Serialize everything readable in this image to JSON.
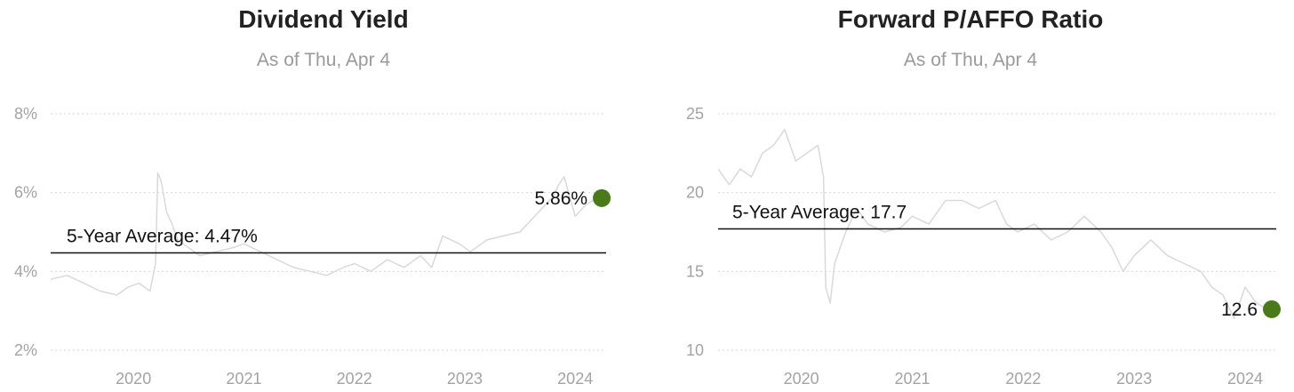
{
  "chart_data": [
    {
      "type": "line",
      "title": "Dividend Yield",
      "subtitle": "As of Thu, Apr 4",
      "yunit": "%",
      "ylim": [
        2,
        8
      ],
      "yticks": [
        2,
        4,
        6,
        8
      ],
      "ytick_labels": [
        "2%",
        "4%",
        "6%",
        "8%"
      ],
      "xticks": [
        "2020",
        "2021",
        "2022",
        "2023",
        "2024"
      ],
      "grid": true,
      "average": {
        "value": 4.47,
        "label": "5-Year Average: 4.47%"
      },
      "current": {
        "value": 5.86,
        "label": "5.86%"
      },
      "series": [
        {
          "x": [
            2019.25,
            2019.4,
            2019.55,
            2019.7,
            2019.85,
            2019.95,
            2020.05,
            2020.15,
            2020.2,
            2020.22,
            2020.25,
            2020.3,
            2020.35,
            2020.4,
            2020.5,
            2020.6,
            2020.75,
            2020.9,
            2021.0,
            2021.15,
            2021.3,
            2021.45,
            2021.6,
            2021.75,
            2021.9,
            2022.0,
            2022.15,
            2022.3,
            2022.45,
            2022.6,
            2022.7,
            2022.8,
            2022.95,
            2023.05,
            2023.2,
            2023.35,
            2023.5,
            2023.6,
            2023.7,
            2023.8,
            2023.85,
            2023.9,
            2024.0,
            2024.1,
            2024.2
          ],
          "y": [
            3.8,
            3.9,
            3.7,
            3.5,
            3.4,
            3.6,
            3.7,
            3.5,
            4.2,
            6.5,
            6.3,
            5.5,
            5.2,
            4.8,
            4.6,
            4.4,
            4.5,
            4.6,
            4.7,
            4.5,
            4.3,
            4.1,
            4.0,
            3.9,
            4.1,
            4.2,
            4.0,
            4.3,
            4.1,
            4.4,
            4.1,
            4.9,
            4.7,
            4.5,
            4.8,
            4.9,
            5.0,
            5.3,
            5.6,
            5.9,
            6.2,
            6.4,
            5.4,
            5.7,
            5.86
          ]
        }
      ]
    },
    {
      "type": "line",
      "title": "Forward P/AFFO Ratio",
      "subtitle": "As of Thu, Apr 4",
      "yunit": "",
      "ylim": [
        10,
        25
      ],
      "yticks": [
        10,
        15,
        20,
        25
      ],
      "ytick_labels": [
        "10",
        "15",
        "20",
        "25"
      ],
      "xticks": [
        "2020",
        "2021",
        "2022",
        "2023",
        "2024"
      ],
      "grid": true,
      "average": {
        "value": 17.7,
        "label": "5-Year Average: 17.7"
      },
      "current": {
        "value": 12.6,
        "label": "12.6"
      },
      "series": [
        {
          "x": [
            2019.25,
            2019.35,
            2019.45,
            2019.55,
            2019.65,
            2019.75,
            2019.85,
            2019.95,
            2020.05,
            2020.15,
            2020.2,
            2020.22,
            2020.26,
            2020.3,
            2020.35,
            2020.4,
            2020.5,
            2020.6,
            2020.75,
            2020.9,
            2021.0,
            2021.15,
            2021.3,
            2021.45,
            2021.6,
            2021.75,
            2021.85,
            2021.95,
            2022.1,
            2022.25,
            2022.4,
            2022.55,
            2022.7,
            2022.8,
            2022.9,
            2023.0,
            2023.15,
            2023.3,
            2023.45,
            2023.6,
            2023.7,
            2023.8,
            2023.9,
            2024.0,
            2024.1,
            2024.2
          ],
          "y": [
            21.5,
            20.5,
            21.5,
            21.0,
            22.5,
            23.0,
            24.0,
            22.0,
            22.5,
            23.0,
            21.0,
            14.0,
            13.0,
            15.5,
            16.5,
            17.5,
            19.0,
            18.0,
            17.5,
            17.8,
            18.5,
            18.0,
            19.5,
            19.5,
            19.0,
            19.5,
            18.0,
            17.5,
            18.0,
            17.0,
            17.5,
            18.5,
            17.5,
            16.5,
            15.0,
            16.0,
            17.0,
            16.0,
            15.5,
            15.0,
            14.0,
            13.5,
            12.0,
            14.0,
            13.0,
            12.6
          ]
        }
      ]
    }
  ]
}
